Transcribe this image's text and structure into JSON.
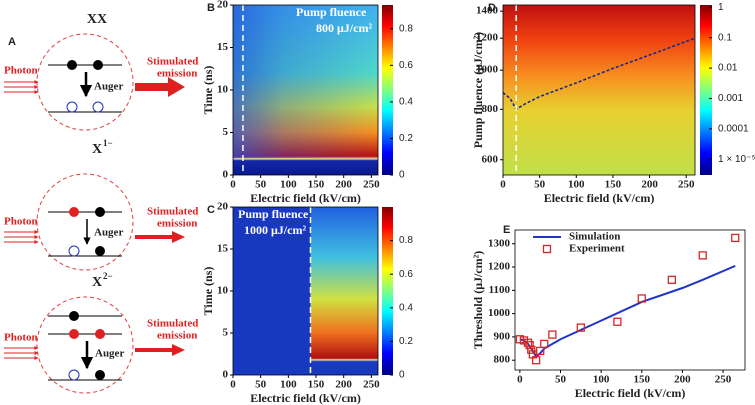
{
  "diagram": {
    "panel_label": "A",
    "rows": [
      {
        "input": "Photon",
        "state": "XX",
        "process": "Auger",
        "output": [
          "Stimulated",
          "emission"
        ]
      },
      {
        "input": "Photon",
        "state": "X",
        "sup": "1−",
        "process": "Auger",
        "output": [
          "Stimulated",
          "emission"
        ]
      },
      {
        "input": "Photon",
        "state": "X",
        "sup": "2−",
        "process": "Auger",
        "output": [
          "Stimulated",
          "emission"
        ]
      }
    ]
  },
  "chart_data": [
    {
      "type": "heatmap",
      "panel_label": "B",
      "annotation": [
        "Pump fluence",
        "800 μJ/cm²"
      ],
      "xlabel": "Electric field (kV/cm)",
      "ylabel": "Time (ns)",
      "xlim": [
        0,
        262
      ],
      "xticks": [
        0,
        50,
        100,
        150,
        200,
        250
      ],
      "ylim": [
        0,
        20
      ],
      "yticks": [
        0,
        5,
        10,
        15,
        20
      ],
      "vline": 18,
      "colorbar": {
        "lim": [
          0,
          0.93
        ],
        "ticks": [
          0,
          0.2,
          0.4,
          0.6,
          0.8
        ]
      }
    },
    {
      "type": "heatmap",
      "panel_label": "C",
      "annotation": [
        "Pump fluence",
        "1000 μJ/cm²"
      ],
      "xlabel": "Electric field (kV/cm)",
      "ylabel": "Time (ns)",
      "xlim": [
        0,
        262
      ],
      "xticks": [
        0,
        50,
        100,
        150,
        200,
        250
      ],
      "ylim": [
        0,
        20
      ],
      "yticks": [
        0,
        5,
        10,
        15,
        20
      ],
      "vline": 140,
      "colorbar": {
        "lim": [
          0,
          1.0
        ],
        "ticks": [
          0,
          0.2,
          0.4,
          0.6,
          0.8
        ]
      }
    },
    {
      "type": "heatmap",
      "panel_label": "D",
      "xlabel": "Electric field (kV/cm)",
      "ylabel": "Pump fluence (μJ/cm²)",
      "xlim": [
        0,
        262
      ],
      "xticks": [
        0,
        50,
        100,
        150,
        200,
        250
      ],
      "ylim": [
        550,
        1450
      ],
      "log_y": true,
      "yticks": [
        600,
        800,
        1000,
        1200,
        1400
      ],
      "vline": 18,
      "series": [
        {
          "color": "#1a2a80",
          "style": "dashed",
          "x": [
            0,
            10,
            18,
            30,
            50,
            100,
            150,
            200,
            262
          ],
          "values": [
            880,
            850,
            800,
            825,
            860,
            930,
            1010,
            1090,
            1200
          ]
        }
      ],
      "colorbar": {
        "lim": [
          3e-06,
          1.2
        ],
        "log": true,
        "ticks": [
          {
            "value": 1e-05,
            "label": "1 × 10⁻⁵"
          },
          0.0001,
          0.001,
          0.01,
          0.1,
          1
        ]
      }
    },
    {
      "type": "line",
      "panel_label": "E",
      "xlabel": "Electric field (kV/cm)",
      "ylabel": "Threshold (μJ/cm²)",
      "xlim": [
        -6,
        277
      ],
      "xticks": [
        0,
        50,
        100,
        150,
        200,
        250
      ],
      "ylim": [
        758,
        1359
      ],
      "yticks": [
        800,
        900,
        1000,
        1100,
        1200,
        1300
      ],
      "legend": "upper left",
      "series": [
        {
          "name": "Simulation",
          "color": "#1f35c8",
          "style": "line",
          "x": [
            0,
            5,
            10,
            15,
            20,
            25,
            30,
            50,
            100,
            150,
            200,
            225,
            265
          ],
          "values": [
            890,
            885,
            870,
            845,
            815,
            830,
            850,
            890,
            970,
            1050,
            1110,
            1145,
            1205
          ]
        },
        {
          "name": "Experiment",
          "color": "#d62728",
          "style": "markers",
          "x": [
            0,
            5,
            10,
            12,
            14,
            16,
            20,
            25,
            30,
            40,
            75,
            120,
            150,
            187,
            225,
            265
          ],
          "values": [
            890,
            885,
            875,
            865,
            845,
            825,
            800,
            840,
            870,
            910,
            940,
            965,
            1065,
            1145,
            1250,
            1325
          ]
        }
      ]
    }
  ]
}
